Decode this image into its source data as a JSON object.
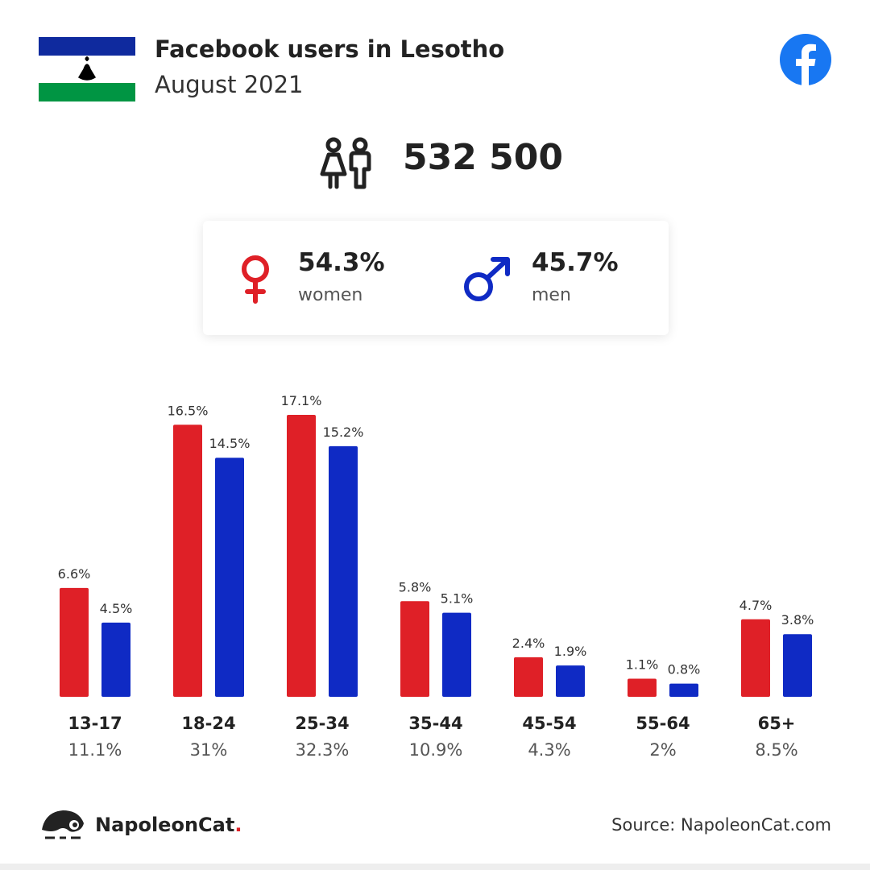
{
  "header": {
    "title": "Facebook users in Lesotho",
    "subtitle": "August 2021",
    "flag_icon": "lesotho-flag-icon",
    "brand_icon": "facebook-icon"
  },
  "total": {
    "icon": "people-icon",
    "value": "532 500"
  },
  "gender": {
    "women": {
      "icon": "female-symbol-icon",
      "percent": "54.3%",
      "label": "women",
      "color": "#DF2027"
    },
    "men": {
      "icon": "male-symbol-icon",
      "percent": "45.7%",
      "label": "men",
      "color": "#0F2AC4"
    }
  },
  "chart_data": {
    "type": "bar",
    "categories": [
      "13-17",
      "18-24",
      "25-34",
      "35-44",
      "45-54",
      "55-64",
      "65+"
    ],
    "category_totals": [
      "11.1%",
      "31%",
      "32.3%",
      "10.9%",
      "4.3%",
      "2%",
      "8.5%"
    ],
    "series": [
      {
        "values": [
          6.6,
          16.5,
          17.1,
          5.8,
          2.4,
          1.1,
          4.7
        ],
        "labels": [
          "6.6%",
          "16.5%",
          "17.1%",
          "5.8%",
          "2.4%",
          "1.1%",
          "4.7%"
        ],
        "color": "#DF2027"
      },
      {
        "values": [
          4.5,
          14.5,
          15.2,
          5.1,
          1.9,
          0.8,
          3.8
        ],
        "labels": [
          "4.5%",
          "14.5%",
          "15.2%",
          "5.1%",
          "1.9%",
          "0.8%",
          "3.8%"
        ],
        "color": "#0F2AC4"
      }
    ],
    "ylim": [
      0,
      17.1
    ],
    "grid": false
  },
  "footer": {
    "brand": "NapoleonCat",
    "brand_dot_color": "#DF2027",
    "brand_icon": "napoleoncat-logo-icon",
    "source": "Source: NapoleonCat.com"
  }
}
